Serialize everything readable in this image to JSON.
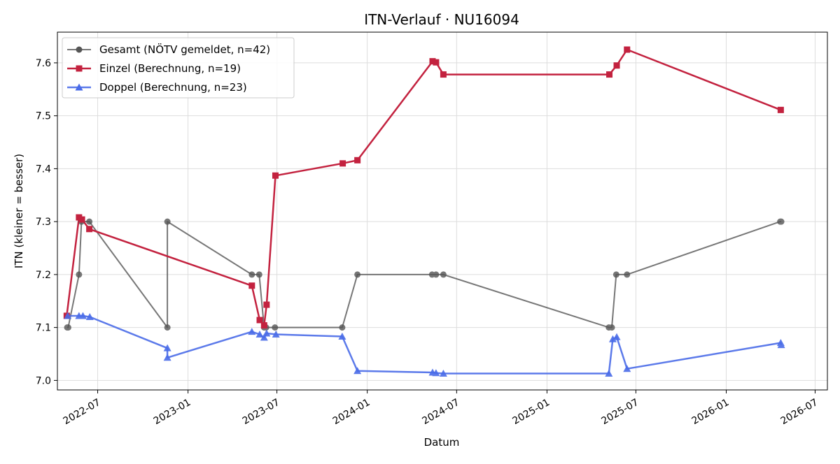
{
  "chart_data": {
    "type": "line",
    "title": "ITN-Verlauf · NU16094",
    "xlabel": "Datum",
    "ylabel": "ITN  (kleiner = besser)",
    "x_type": "date",
    "xlim": [
      "2022-04-10",
      "2026-07-26"
    ],
    "ylim": [
      6.982,
      7.658
    ],
    "grid": true,
    "legend_position": "upper-left",
    "x_ticks": [
      {
        "date": "2022-07-01",
        "label": "2022-07"
      },
      {
        "date": "2023-01-01",
        "label": "2023-01"
      },
      {
        "date": "2023-07-01",
        "label": "2023-07"
      },
      {
        "date": "2024-01-01",
        "label": "2024-01"
      },
      {
        "date": "2024-07-01",
        "label": "2024-07"
      },
      {
        "date": "2025-01-01",
        "label": "2025-01"
      },
      {
        "date": "2025-07-01",
        "label": "2025-07"
      },
      {
        "date": "2026-01-01",
        "label": "2026-01"
      },
      {
        "date": "2026-07-01",
        "label": "2026-07"
      }
    ],
    "y_ticks": [
      {
        "value": 7.0,
        "label": "7.0"
      },
      {
        "value": 7.1,
        "label": "7.1"
      },
      {
        "value": 7.2,
        "label": "7.2"
      },
      {
        "value": 7.3,
        "label": "7.3"
      },
      {
        "value": 7.4,
        "label": "7.4"
      },
      {
        "value": 7.5,
        "label": "7.5"
      },
      {
        "value": 7.6,
        "label": "7.6"
      }
    ],
    "series": [
      {
        "name": "Gesamt (NÖTV gemeldet, n=42)",
        "color": "#555555",
        "marker": "circle",
        "points": [
          {
            "x": "2022-04-30",
            "y": 7.1
          },
          {
            "x": "2022-05-02",
            "y": 7.1
          },
          {
            "x": "2022-05-24",
            "y": 7.2
          },
          {
            "x": "2022-05-29",
            "y": 7.3
          },
          {
            "x": "2022-06-14",
            "y": 7.3
          },
          {
            "x": "2022-11-20",
            "y": 7.1
          },
          {
            "x": "2022-11-20",
            "y": 7.3
          },
          {
            "x": "2023-05-11",
            "y": 7.2
          },
          {
            "x": "2023-05-26",
            "y": 7.2
          },
          {
            "x": "2023-06-05",
            "y": 7.1
          },
          {
            "x": "2023-06-09",
            "y": 7.1
          },
          {
            "x": "2023-06-27",
            "y": 7.1
          },
          {
            "x": "2023-11-11",
            "y": 7.1
          },
          {
            "x": "2023-12-12",
            "y": 7.2
          },
          {
            "x": "2024-05-12",
            "y": 7.2
          },
          {
            "x": "2024-05-20",
            "y": 7.2
          },
          {
            "x": "2024-06-04",
            "y": 7.2
          },
          {
            "x": "2025-05-07",
            "y": 7.1
          },
          {
            "x": "2025-05-13",
            "y": 7.1
          },
          {
            "x": "2025-05-22",
            "y": 7.2
          },
          {
            "x": "2025-06-13",
            "y": 7.2
          },
          {
            "x": "2026-04-21",
            "y": 7.3
          },
          {
            "x": "2026-04-23",
            "y": 7.3
          }
        ]
      },
      {
        "name": "Einzel (Berechnung, n=19)",
        "color": "#c3223f",
        "marker": "square",
        "points": [
          {
            "x": "2022-04-29",
            "y": 7.122
          },
          {
            "x": "2022-05-24",
            "y": 7.308
          },
          {
            "x": "2022-05-30",
            "y": 7.304
          },
          {
            "x": "2022-06-14",
            "y": 7.286
          },
          {
            "x": "2023-05-11",
            "y": 7.179
          },
          {
            "x": "2023-05-27",
            "y": 7.114
          },
          {
            "x": "2023-06-05",
            "y": 7.104
          },
          {
            "x": "2023-06-10",
            "y": 7.143
          },
          {
            "x": "2023-06-28",
            "y": 7.387
          },
          {
            "x": "2023-11-12",
            "y": 7.41
          },
          {
            "x": "2023-12-12",
            "y": 7.416
          },
          {
            "x": "2024-05-13",
            "y": 7.603
          },
          {
            "x": "2024-05-20",
            "y": 7.601
          },
          {
            "x": "2024-06-04",
            "y": 7.578
          },
          {
            "x": "2025-05-08",
            "y": 7.578
          },
          {
            "x": "2025-05-23",
            "y": 7.595
          },
          {
            "x": "2025-06-13",
            "y": 7.625
          },
          {
            "x": "2026-04-22",
            "y": 7.511
          }
        ]
      },
      {
        "name": "Doppel (Berechnung, n=23)",
        "color": "#4a6ce8",
        "marker": "triangle",
        "points": [
          {
            "x": "2022-05-01",
            "y": 7.122
          },
          {
            "x": "2022-05-24",
            "y": 7.122
          },
          {
            "x": "2022-06-01",
            "y": 7.122
          },
          {
            "x": "2022-06-15",
            "y": 7.12
          },
          {
            "x": "2022-11-20",
            "y": 7.061
          },
          {
            "x": "2022-11-20",
            "y": 7.043
          },
          {
            "x": "2023-05-11",
            "y": 7.092
          },
          {
            "x": "2023-05-27",
            "y": 7.087
          },
          {
            "x": "2023-06-05",
            "y": 7.081
          },
          {
            "x": "2023-06-10",
            "y": 7.089
          },
          {
            "x": "2023-06-29",
            "y": 7.087
          },
          {
            "x": "2023-11-11",
            "y": 7.083
          },
          {
            "x": "2023-12-12",
            "y": 7.018
          },
          {
            "x": "2024-05-13",
            "y": 7.015
          },
          {
            "x": "2024-05-20",
            "y": 7.014
          },
          {
            "x": "2024-06-04",
            "y": 7.013
          },
          {
            "x": "2025-05-07",
            "y": 7.013
          },
          {
            "x": "2025-05-15",
            "y": 7.078
          },
          {
            "x": "2025-05-23",
            "y": 7.082
          },
          {
            "x": "2025-06-13",
            "y": 7.022
          },
          {
            "x": "2026-04-22",
            "y": 7.071
          },
          {
            "x": "2026-04-23",
            "y": 7.067
          }
        ]
      }
    ]
  }
}
